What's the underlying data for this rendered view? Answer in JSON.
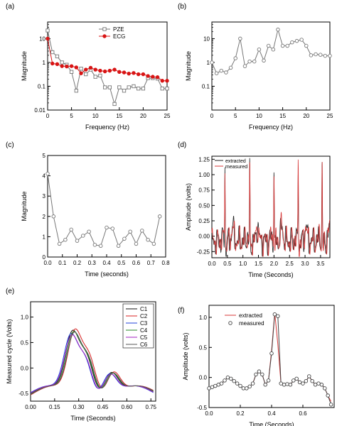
{
  "chart_data": [
    {
      "panel": "(a)",
      "type": "line",
      "xlabel": "Frequency (Hz)",
      "ylabel": "Magnitude",
      "xlim": [
        0,
        25
      ],
      "ylim": [
        0.01,
        50
      ],
      "yscale": "log",
      "xticks": [
        0,
        5,
        10,
        15,
        20,
        25
      ],
      "yticks": [
        0.01,
        0.1,
        1,
        10
      ],
      "ytick_labels": [
        "0.01",
        "0.1",
        "1",
        "10"
      ],
      "legend_position": "top-right",
      "series": [
        {
          "name": "PZE",
          "color": "#777777",
          "marker": "open-square",
          "x": [
            0,
            1,
            2,
            3,
            4,
            5,
            6,
            7,
            8,
            9,
            10,
            11,
            12,
            13,
            14,
            15,
            16,
            17,
            18,
            19,
            20,
            21,
            22,
            23,
            24,
            25
          ],
          "y": [
            22,
            2.7,
            1.8,
            1.0,
            0.8,
            0.4,
            0.065,
            0.55,
            0.32,
            0.5,
            0.25,
            0.28,
            0.09,
            0.09,
            0.018,
            0.09,
            0.065,
            0.09,
            0.1,
            0.08,
            0.08,
            0.22,
            0.22,
            0.21,
            0.08,
            0.08
          ]
        },
        {
          "name": "ECG",
          "color": "#d81414",
          "marker": "filled-circle",
          "x": [
            0,
            1,
            2,
            3,
            4,
            5,
            6,
            7,
            8,
            9,
            10,
            11,
            12,
            13,
            14,
            15,
            16,
            17,
            18,
            19,
            20,
            21,
            22,
            23,
            24,
            25
          ],
          "y": [
            10,
            0.9,
            0.85,
            0.7,
            0.68,
            0.7,
            0.62,
            0.35,
            0.5,
            0.6,
            0.5,
            0.45,
            0.42,
            0.45,
            0.5,
            0.4,
            0.38,
            0.34,
            0.36,
            0.32,
            0.32,
            0.27,
            0.25,
            0.24,
            0.17,
            0.17
          ]
        }
      ]
    },
    {
      "panel": "(b)",
      "type": "line",
      "xlabel": "Frequency (Hz)",
      "ylabel": "Magnitude",
      "xlim": [
        0,
        25
      ],
      "ylim": [
        0.01,
        50
      ],
      "yscale": "log",
      "xticks": [
        0,
        5,
        10,
        15,
        20,
        25
      ],
      "yticks": [
        0.1,
        1,
        10
      ],
      "ytick_labels": [
        "0.1",
        "1",
        "10"
      ],
      "series": [
        {
          "color": "#777777",
          "marker": "open-circle",
          "x": [
            0,
            1,
            2,
            3,
            4,
            5,
            6,
            7,
            8,
            9,
            10,
            11,
            12,
            13,
            14,
            15,
            16,
            17,
            18,
            19,
            20,
            21,
            22,
            23,
            24,
            25
          ],
          "y": [
            1.0,
            0.35,
            0.45,
            0.38,
            0.6,
            1.5,
            10,
            0.7,
            1.1,
            1.1,
            3.5,
            1.2,
            5,
            3.5,
            24,
            5,
            5,
            7,
            8,
            9,
            5,
            2,
            2.2,
            2.1,
            1.9,
            1.9
          ]
        }
      ]
    },
    {
      "panel": "(c)",
      "type": "line",
      "xlabel": "Time (seconds)",
      "ylabel": "Magnitude",
      "xlim": [
        0,
        0.8
      ],
      "ylim": [
        0,
        5
      ],
      "xticks": [
        0,
        0.1,
        0.2,
        0.3,
        0.4,
        0.5,
        0.6,
        0.7,
        0.8
      ],
      "xtick_labels": [
        "0.0",
        "0.1",
        "0.2",
        "0.3",
        "0.4",
        "0.5",
        "0.6",
        "0.7",
        "0.8"
      ],
      "yticks": [
        0,
        1,
        2,
        3,
        4,
        5
      ],
      "series": [
        {
          "color": "#777777",
          "marker": "open-circle",
          "x": [
            0.0,
            0.04,
            0.08,
            0.12,
            0.16,
            0.2,
            0.24,
            0.28,
            0.32,
            0.36,
            0.4,
            0.44,
            0.48,
            0.52,
            0.56,
            0.6,
            0.64,
            0.68,
            0.72,
            0.76
          ],
          "y": [
            4.1,
            2.0,
            0.65,
            0.85,
            1.35,
            0.8,
            1.05,
            1.25,
            0.6,
            0.55,
            1.45,
            1.4,
            0.55,
            0.9,
            1.25,
            0.65,
            1.3,
            0.85,
            0.65,
            2.0
          ]
        }
      ]
    },
    {
      "panel": "(d)",
      "type": "line",
      "xlabel": "Time (Seconds)",
      "ylabel": "Amplitude (volts)",
      "xlim": [
        0,
        3.8
      ],
      "ylim": [
        -0.35,
        1.3
      ],
      "xticks": [
        0,
        0.5,
        1,
        1.5,
        2,
        2.5,
        3,
        3.5
      ],
      "xtick_labels": [
        "0.0",
        "0.5",
        "1.0",
        "1.5",
        "2.0",
        "2.5",
        "3.0",
        "3.5"
      ],
      "yticks": [
        -0.25,
        0,
        0.25,
        0.5,
        0.75,
        1.0,
        1.25
      ],
      "ytick_labels": [
        "-0.25",
        "0.00",
        "0.25",
        "0.50",
        "0.75",
        "1.00",
        "1.25"
      ],
      "legend_position": "top-left",
      "beats": [
        0.42,
        1.22,
        2.0,
        2.78,
        3.55
      ],
      "series": [
        {
          "name": "extracted",
          "color": "#222222"
        },
        {
          "name": "measured",
          "color": "#d83a3a"
        }
      ]
    },
    {
      "panel": "(e)",
      "type": "line",
      "xlabel": "Time (Seconds)",
      "ylabel": "Measured cycle (Volts)",
      "xlim": [
        0,
        0.78
      ],
      "ylim": [
        -0.65,
        1.3
      ],
      "xticks": [
        0,
        0.15,
        0.3,
        0.45,
        0.6,
        0.75
      ],
      "xtick_labels": [
        "0.00",
        "0.15",
        "0.30",
        "0.45",
        "0.60",
        "0.75"
      ],
      "yticks": [
        -0.5,
        0,
        0.5,
        1.0
      ],
      "ytick_labels": [
        "-0.5",
        "0.0",
        "0.5",
        "1.0"
      ],
      "legend_position": "top-right",
      "series": [
        {
          "name": "C1",
          "color": "#111111",
          "shift": 0.0,
          "amp": 1.0
        },
        {
          "name": "C2",
          "color": "#d82020",
          "shift": 0.015,
          "amp": 1.02
        },
        {
          "name": "C3",
          "color": "#2040d8",
          "shift": -0.01,
          "amp": 0.95
        },
        {
          "name": "C4",
          "color": "#2a8a2a",
          "shift": 0.005,
          "amp": 0.98
        },
        {
          "name": "C5",
          "color": "#a020c0",
          "shift": -0.005,
          "amp": 0.93
        },
        {
          "name": "C6",
          "color": "#555555",
          "shift": 0.01,
          "amp": 0.97
        }
      ]
    },
    {
      "panel": "(f)",
      "type": "line",
      "xlabel": "Time (Seconds)",
      "ylabel": "Amplitude (volts)",
      "xlim": [
        0,
        0.8
      ],
      "ylim": [
        -0.5,
        1.2
      ],
      "xticks": [
        0,
        0.2,
        0.4,
        0.6
      ],
      "xtick_labels": [
        "0.0",
        "0.2",
        "0.4",
        "0.6"
      ],
      "yticks": [
        -0.5,
        0,
        0.5,
        1.0
      ],
      "ytick_labels": [
        "-0.5",
        "0.0",
        "0.5",
        "1.0"
      ],
      "legend_position": "top-right",
      "series": [
        {
          "name": "extracted",
          "color": "#d83a3a",
          "x": [
            0.0,
            0.02,
            0.04,
            0.06,
            0.08,
            0.1,
            0.12,
            0.14,
            0.16,
            0.18,
            0.2,
            0.22,
            0.24,
            0.26,
            0.28,
            0.3,
            0.32,
            0.34,
            0.36,
            0.38,
            0.4,
            0.42,
            0.44,
            0.46,
            0.48,
            0.5,
            0.52,
            0.54,
            0.56,
            0.58,
            0.6,
            0.62,
            0.64,
            0.66,
            0.68,
            0.7,
            0.72,
            0.74,
            0.76,
            0.78
          ],
          "y": [
            -0.18,
            -0.16,
            -0.14,
            -0.12,
            -0.1,
            -0.05,
            0.0,
            -0.02,
            -0.06,
            -0.1,
            -0.14,
            -0.18,
            -0.18,
            -0.15,
            -0.1,
            0.05,
            0.1,
            0.05,
            -0.12,
            -0.05,
            0.45,
            1.08,
            0.55,
            -0.1,
            -0.12,
            -0.11,
            -0.12,
            -0.05,
            -0.02,
            -0.08,
            -0.1,
            -0.06,
            0.02,
            -0.06,
            -0.12,
            -0.1,
            -0.12,
            -0.18,
            -0.3,
            -0.4
          ]
        },
        {
          "name": "measured",
          "color": "#444444",
          "marker": "open-circle",
          "x": [
            0.0,
            0.02,
            0.04,
            0.06,
            0.08,
            0.1,
            0.12,
            0.14,
            0.16,
            0.18,
            0.2,
            0.22,
            0.24,
            0.26,
            0.28,
            0.3,
            0.32,
            0.34,
            0.36,
            0.38,
            0.4,
            0.42,
            0.44,
            0.46,
            0.48,
            0.5,
            0.52,
            0.54,
            0.56,
            0.58,
            0.6,
            0.62,
            0.64,
            0.66,
            0.68,
            0.7,
            0.72,
            0.74,
            0.76,
            0.78
          ],
          "y": [
            -0.18,
            -0.16,
            -0.14,
            -0.12,
            -0.1,
            -0.05,
            0.0,
            -0.02,
            -0.06,
            -0.1,
            -0.14,
            -0.18,
            -0.18,
            -0.15,
            -0.1,
            0.05,
            0.1,
            0.05,
            -0.12,
            -0.05,
            0.4,
            1.05,
            1.02,
            -0.1,
            -0.12,
            -0.11,
            -0.12,
            -0.05,
            -0.02,
            -0.08,
            -0.1,
            -0.06,
            0.02,
            -0.06,
            -0.12,
            -0.1,
            -0.12,
            -0.18,
            -0.3,
            -0.45
          ]
        }
      ]
    }
  ]
}
